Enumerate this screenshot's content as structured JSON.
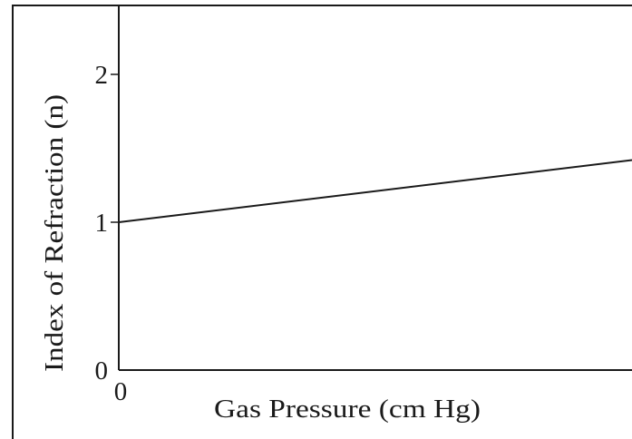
{
  "chart_data": {
    "type": "line",
    "title": "",
    "xlabel": "Gas Pressure (cm Hg)",
    "ylabel": "Index of Refraction (n)",
    "x_ticks": [
      {
        "value": 0,
        "label": "0"
      }
    ],
    "y_ticks": [
      {
        "value": 0,
        "label": "0"
      },
      {
        "value": 1,
        "label": "1"
      },
      {
        "value": 2,
        "label": "2"
      }
    ],
    "ylim": [
      0,
      2.45
    ],
    "grid": false,
    "legend": "none",
    "series": [
      {
        "x": [
          0,
          1
        ],
        "y": [
          1.0,
          1.42
        ],
        "color": "#1a1a1a"
      }
    ],
    "note": "x-axis has no numeric scale beyond 0; x shown as fraction of visible axis length"
  }
}
